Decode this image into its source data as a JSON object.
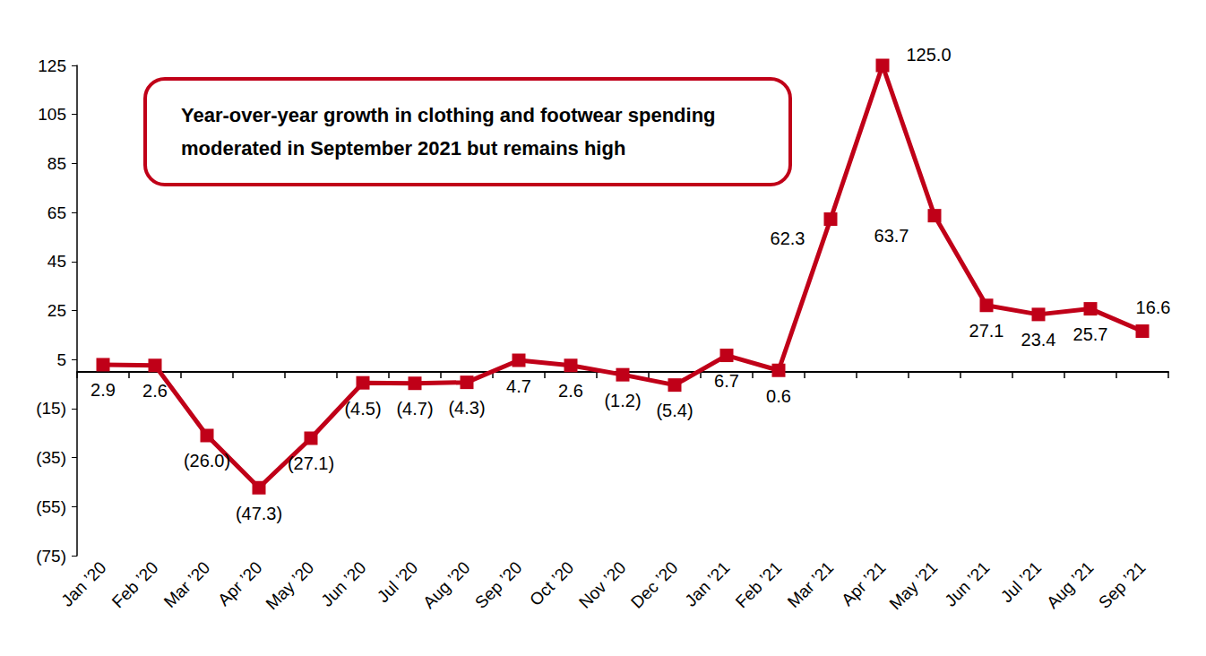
{
  "chart_data": {
    "type": "line",
    "title": "Year-over-year growth in clothing and footwear spending moderated in September 2021 but remains high",
    "categories": [
      "Jan ’20",
      "Feb ’20",
      "Mar ’20",
      "Apr ’20",
      "May ’20",
      "Jun ’20",
      "Jul ’20",
      "Aug ’20",
      "Sep ’20",
      "Oct ’20",
      "Nov ’20",
      "Dec ’20",
      "Jan ’21",
      "Feb ’21",
      "Mar ’21",
      "Apr ’21",
      "May ’21",
      "Jun ’21",
      "Jul ’21",
      "Aug ’21",
      "Sep ’21"
    ],
    "values": [
      2.9,
      2.6,
      -26.0,
      -47.3,
      -27.1,
      -4.5,
      -4.7,
      -4.3,
      4.7,
      2.6,
      -1.2,
      -5.4,
      6.7,
      0.6,
      62.3,
      125.0,
      63.7,
      27.1,
      23.4,
      25.7,
      16.6
    ],
    "value_labels": [
      "2.9",
      "2.6",
      "(26.0)",
      "(47.3)",
      "(27.1)",
      "(4.5)",
      "(4.7)",
      "(4.3)",
      "4.7",
      "2.6",
      "(1.2)",
      "(5.4)",
      "6.7",
      "0.6",
      "62.3",
      "125.0",
      "63.7",
      "27.1",
      "23.4",
      "25.7",
      "16.6"
    ],
    "color": "#c00018",
    "marker": "square",
    "ylim": [
      -75,
      125
    ],
    "yticks": [
      {
        "value": -75,
        "label": "(75)"
      },
      {
        "value": -55,
        "label": "(55)"
      },
      {
        "value": -35,
        "label": "(35)"
      },
      {
        "value": -15,
        "label": "(15)"
      },
      5,
      25,
      45,
      65,
      85,
      105,
      125
    ],
    "grid": false,
    "data_labels": true
  }
}
